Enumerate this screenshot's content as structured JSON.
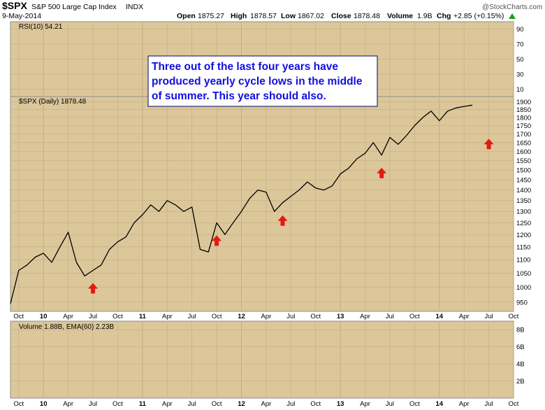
{
  "header": {
    "symbol": "$SPX",
    "name": "S&P 500 Large Cap Index",
    "exchange": "INDX",
    "date": "9-May-2014",
    "open_label": "Open",
    "open": "1875.27",
    "high_label": "High",
    "high": "1878.57",
    "low_label": "Low",
    "low": "1867.02",
    "close_label": "Close",
    "close": "1878.48",
    "volume_label": "Volume",
    "volume": "1.9B",
    "chg_label": "Chg",
    "chg": "+2.85 (+0.15%)",
    "brand": "@StockCharts.com"
  },
  "rsi_panel": {
    "label": "RSI(10) 54.21",
    "ticks": [
      "90",
      "70",
      "50",
      "30",
      "10"
    ]
  },
  "price_panel": {
    "label": "$SPX (Daily) 1878.48"
  },
  "volume_panel": {
    "label": "Volume 1.88B, EMA(60) 2.23B",
    "ticks": [
      "8B",
      "6B",
      "4B",
      "2B"
    ]
  },
  "annotation": {
    "lines": [
      "Three out of the last four years have",
      "produced yearly cycle lows in the middle",
      "of summer. This year should also."
    ]
  },
  "colors": {
    "panel_fill": "#dcc79a",
    "border": "#8c8c8c",
    "arrow": "#e41a10",
    "annotation_text": "#1010e0",
    "series": "#000000",
    "down_bars": "#c0101a",
    "green_arrow": "#1a9e1a"
  },
  "chart_data": {
    "type": "line",
    "title": "$SPX (Daily) 1878.48",
    "x_axis": {
      "ticks": [
        "Oct",
        "10",
        "Apr",
        "Jul",
        "Oct",
        "11",
        "Apr",
        "Jul",
        "Oct",
        "12",
        "Apr",
        "Jul",
        "Oct",
        "13",
        "Apr",
        "Jul",
        "Oct",
        "14",
        "Apr",
        "Jul",
        "Oct"
      ],
      "year_ticks": [
        "10",
        "11",
        "12",
        "13",
        "14"
      ],
      "range": [
        "2009-09",
        "2014-10"
      ]
    },
    "y_axis": {
      "scale": "log",
      "ticks": [
        950,
        1000,
        1050,
        1100,
        1150,
        1200,
        1250,
        1300,
        1350,
        1400,
        1450,
        1500,
        1550,
        1600,
        1650,
        1700,
        1750,
        1800,
        1850,
        1900
      ],
      "ylim": [
        920,
        1935
      ]
    },
    "series": [
      {
        "x": [
          "2009-09",
          "2009-10",
          "2009-11",
          "2009-12",
          "2010-01",
          "2010-02",
          "2010-03",
          "2010-04",
          "2010-05",
          "2010-06",
          "2010-07",
          "2010-08",
          "2010-09",
          "2010-10",
          "2010-11",
          "2010-12",
          "2011-01",
          "2011-02",
          "2011-03",
          "2011-04",
          "2011-05",
          "2011-06",
          "2011-07",
          "2011-08",
          "2011-09",
          "2011-10",
          "2011-11",
          "2011-12",
          "2012-01",
          "2012-02",
          "2012-03",
          "2012-04",
          "2012-05",
          "2012-06",
          "2012-07",
          "2012-08",
          "2012-09",
          "2012-10",
          "2012-11",
          "2012-12",
          "2013-01",
          "2013-02",
          "2013-03",
          "2013-04",
          "2013-05",
          "2013-06",
          "2013-07",
          "2013-08",
          "2013-09",
          "2013-10",
          "2013-11",
          "2013-12",
          "2014-01",
          "2014-02",
          "2014-03",
          "2014-04",
          "2014-05"
        ],
        "values": [
          945,
          1060,
          1080,
          1110,
          1125,
          1090,
          1150,
          1210,
          1090,
          1040,
          1060,
          1080,
          1140,
          1170,
          1190,
          1250,
          1285,
          1330,
          1300,
          1350,
          1330,
          1300,
          1320,
          1140,
          1130,
          1250,
          1200,
          1250,
          1300,
          1360,
          1400,
          1390,
          1300,
          1340,
          1370,
          1400,
          1440,
          1410,
          1400,
          1420,
          1480,
          1510,
          1560,
          1590,
          1650,
          1580,
          1680,
          1640,
          1690,
          1750,
          1800,
          1840,
          1780,
          1840,
          1860,
          1870,
          1878
        ]
      }
    ],
    "cycle_low_markers": [
      "2010-07",
      "2011-10",
      "2012-06",
      "2013-06",
      "2014-07"
    ],
    "rsi_ylim": [
      0,
      100
    ],
    "volume_ylim": [
      0,
      9
    ]
  }
}
